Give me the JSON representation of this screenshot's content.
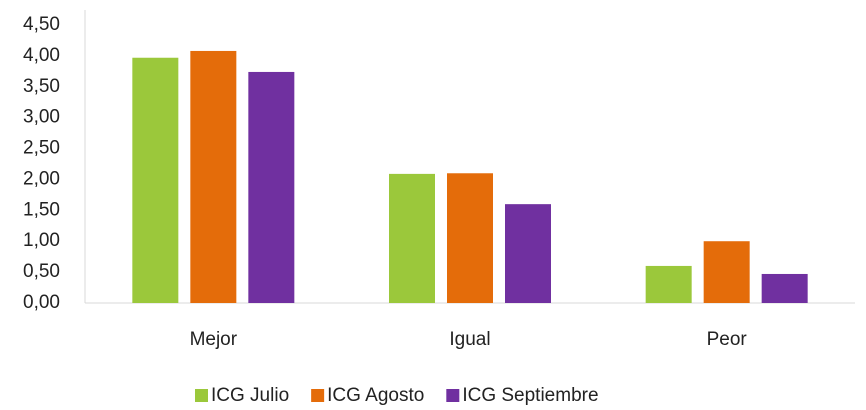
{
  "chart_data": {
    "type": "bar",
    "categories": [
      "Mejor",
      "Igual",
      "Peor"
    ],
    "series": [
      {
        "name": "ICG Julio",
        "color": "#9bc83b",
        "values": [
          3.97,
          2.09,
          0.6
        ]
      },
      {
        "name": "ICG Agosto",
        "color": "#e46c0a",
        "values": [
          4.08,
          2.1,
          1.0
        ]
      },
      {
        "name": "ICG Septiembre",
        "color": "#7030a0",
        "values": [
          3.74,
          1.6,
          0.47
        ]
      }
    ],
    "ylim": [
      0,
      4.5
    ],
    "yticks": [
      {
        "value": 0,
        "label": "0,00"
      },
      {
        "value": 0.5,
        "label": "0,50"
      },
      {
        "value": 1,
        "label": "1,00"
      },
      {
        "value": 1.5,
        "label": "1,50"
      },
      {
        "value": 2,
        "label": "2,00"
      },
      {
        "value": 2.5,
        "label": "2,50"
      },
      {
        "value": 3,
        "label": "3,00"
      },
      {
        "value": 3.5,
        "label": "3,50"
      },
      {
        "value": 4,
        "label": "4,00"
      },
      {
        "value": 4.5,
        "label": "4,50"
      }
    ],
    "grid": false,
    "legend": "bottom"
  }
}
